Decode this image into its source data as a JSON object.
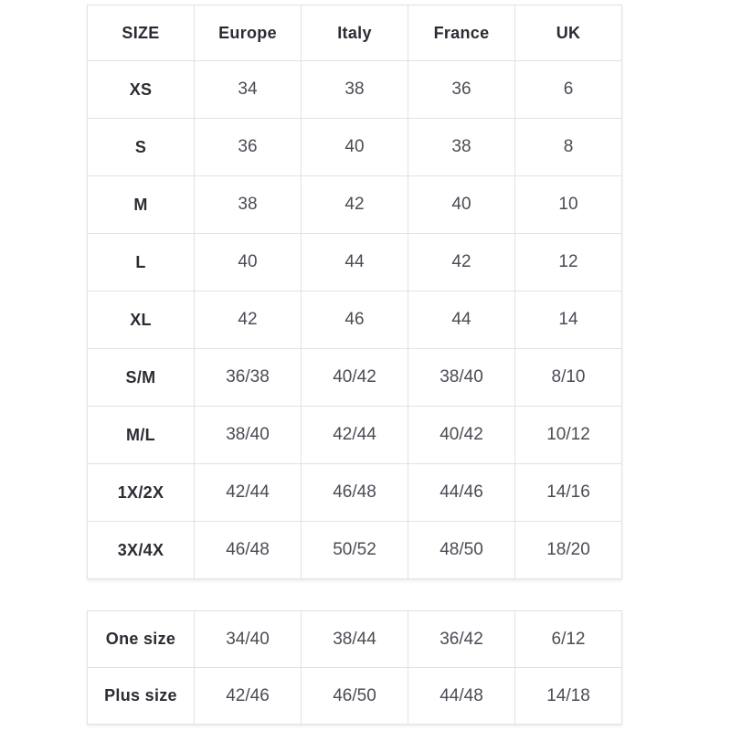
{
  "colors": {
    "background": "#ffffff",
    "border": "#e2e2e2",
    "label_text": "#2b2b33",
    "value_text": "#4b4b55"
  },
  "size_table": {
    "columns": [
      "SIZE",
      "Europe",
      "Italy",
      "France",
      "UK"
    ],
    "rows": [
      {
        "size": "XS",
        "values": [
          "34",
          "38",
          "36",
          "6"
        ]
      },
      {
        "size": "S",
        "values": [
          "36",
          "40",
          "38",
          "8"
        ]
      },
      {
        "size": "M",
        "values": [
          "38",
          "42",
          "40",
          "10"
        ]
      },
      {
        "size": "L",
        "values": [
          "40",
          "44",
          "42",
          "12"
        ]
      },
      {
        "size": "XL",
        "values": [
          "42",
          "46",
          "44",
          "14"
        ]
      },
      {
        "size": "S/M",
        "values": [
          "36/38",
          "40/42",
          "38/40",
          "8/10"
        ]
      },
      {
        "size": "M/L",
        "values": [
          "38/40",
          "42/44",
          "40/42",
          "10/12"
        ]
      },
      {
        "size": "1X/2X",
        "values": [
          "42/44",
          "46/48",
          "44/46",
          "14/16"
        ]
      },
      {
        "size": "3X/4X",
        "values": [
          "46/48",
          "50/52",
          "48/50",
          "18/20"
        ]
      }
    ]
  },
  "special_table": {
    "rows": [
      {
        "size": "One size",
        "values": [
          "34/40",
          "38/44",
          "36/42",
          "6/12"
        ]
      },
      {
        "size": "Plus size",
        "values": [
          "42/46",
          "46/50",
          "44/48",
          "14/18"
        ]
      }
    ]
  }
}
